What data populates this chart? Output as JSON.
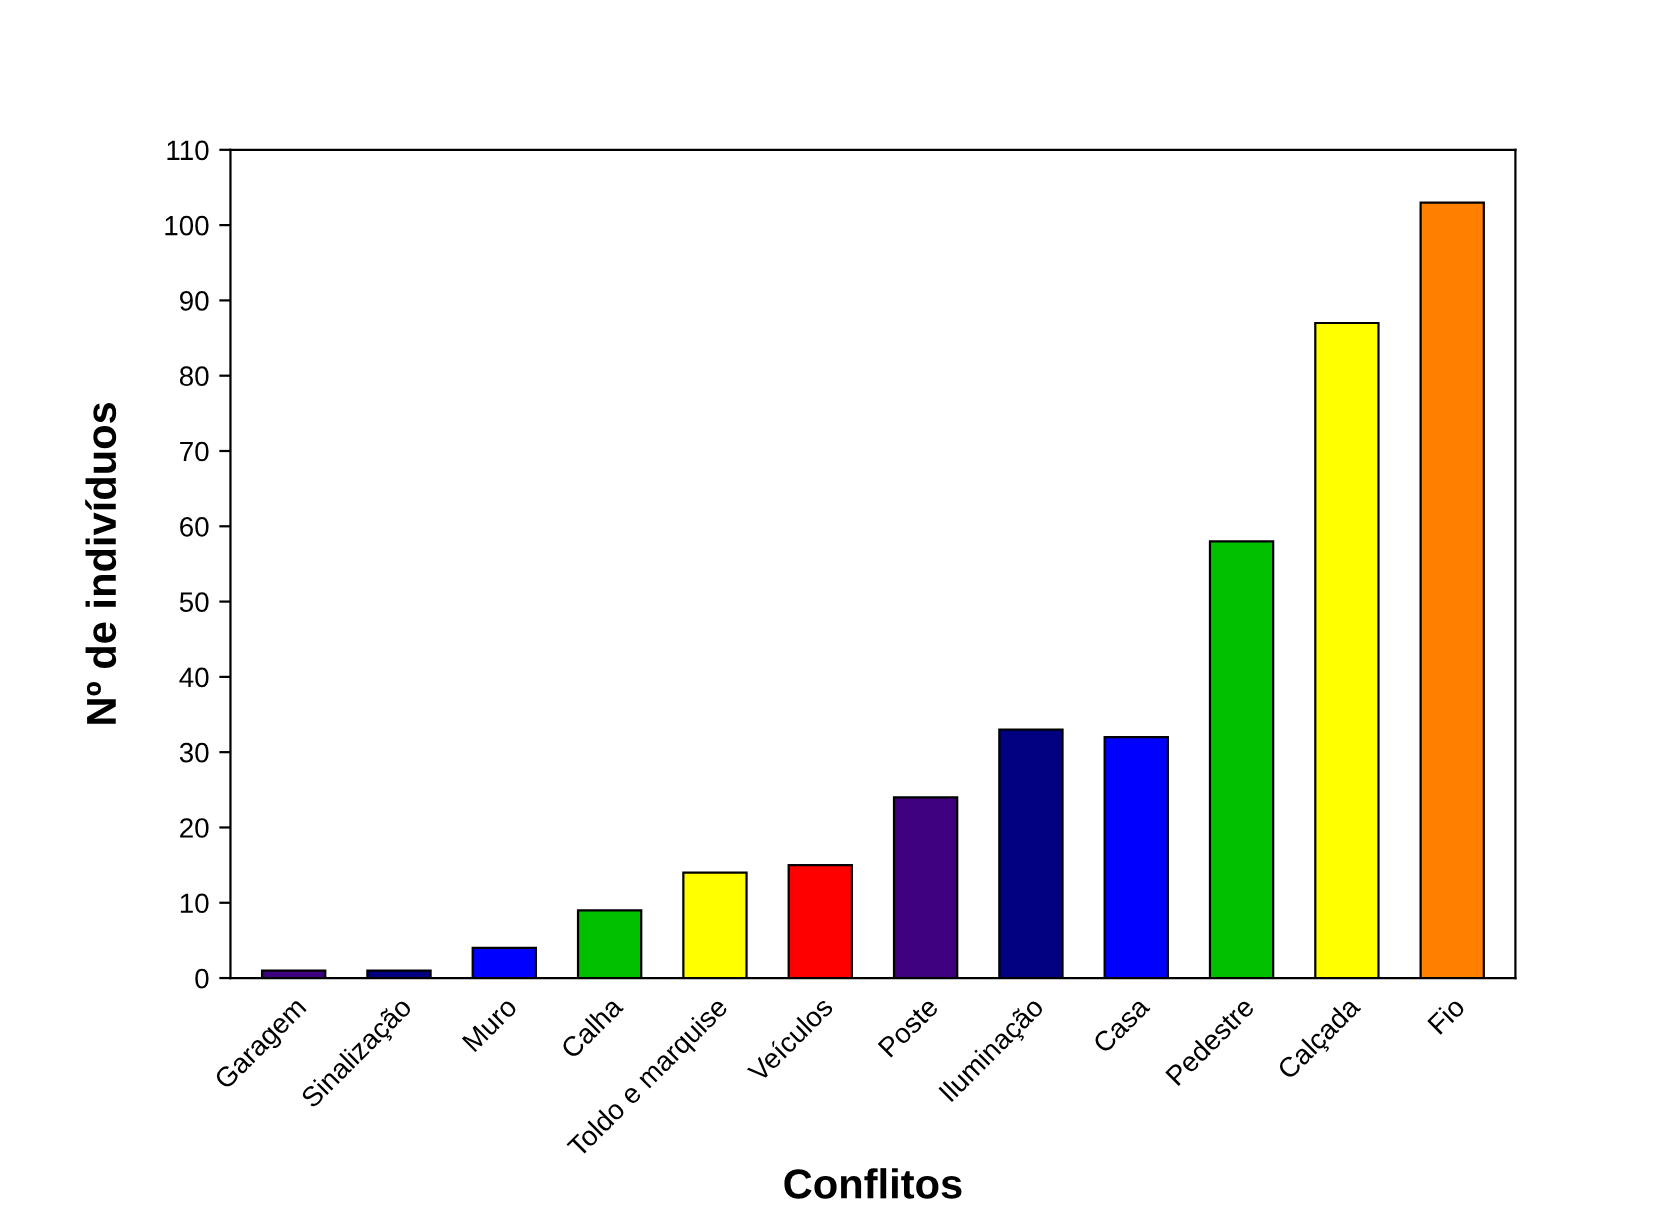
{
  "chart_data": {
    "type": "bar",
    "xlabel": "Conflitos",
    "ylabel": "Nº de indivíduos",
    "categories": [
      "Garagem",
      "Sinalização",
      "Muro",
      "Calha",
      "Toldo e marquise",
      "Veículos",
      "Poste",
      "Iluminação",
      "Casa",
      "Pedestre",
      "Calçada",
      "Fio"
    ],
    "values": [
      1,
      1,
      4,
      9,
      14,
      15,
      24,
      33,
      32,
      58,
      87,
      103
    ],
    "colors": [
      "#3f007f",
      "#000080",
      "#0000ff",
      "#00c000",
      "#ffff00",
      "#ff0000",
      "#3f007f",
      "#000080",
      "#0000ff",
      "#00c000",
      "#ffff00",
      "#ff8000"
    ],
    "ylim": [
      0,
      110
    ],
    "yticks": [
      0,
      10,
      20,
      30,
      40,
      50,
      60,
      70,
      80,
      90,
      100,
      110
    ],
    "grid": false
  }
}
